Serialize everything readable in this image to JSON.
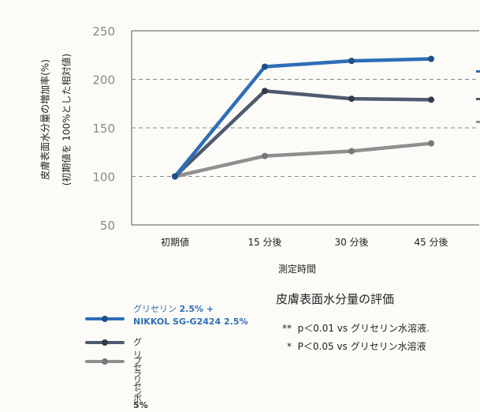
{
  "chart_data": {
    "type": "line",
    "title": "皮膚表面水分量の評価",
    "xlabel": "測定時間",
    "ylabel_line1": "皮膚表面水分量の増加率(%)",
    "ylabel_line2": "(初期値を 100%とした相対値)",
    "categories": [
      "初期値",
      "15 分後",
      "30 分後",
      "45 分後"
    ],
    "yticks": [
      "50",
      "100",
      "150",
      "200",
      "250"
    ],
    "ylim": [
      50,
      250
    ],
    "grid": "horizontal-dashed",
    "legend_position": "bottom-left",
    "series": [
      {
        "name": "グリセリン 2.5% + NIKKOL SG-G2424 2.5%",
        "color": "#2e6eb8",
        "values": [
          100,
          213,
          219,
          221
        ]
      },
      {
        "name": "グリセリン 5%",
        "color": "#4e5b6e",
        "values": [
          100,
          188,
          180,
          179
        ]
      },
      {
        "name": "プラセボ",
        "color": "#8f8f8f",
        "values": [
          100,
          121,
          126,
          134
        ]
      }
    ]
  },
  "legend": {
    "s1_line1_prefix": "グリセリン ",
    "s1_line1_bold": "2.5% +",
    "s1_line2": "NIKKOL SG-G2424 2.5%",
    "s2_prefix": "グリセリン ",
    "s2_bold": "5%",
    "s3": "プラセボ"
  },
  "notes": {
    "note1_mark": "**",
    "note1_text": "p＜0.01 vs グリセリン水溶液.",
    "note2_mark": "*",
    "note2_text": "P＜0.05 vs グリセリン水溶液"
  }
}
